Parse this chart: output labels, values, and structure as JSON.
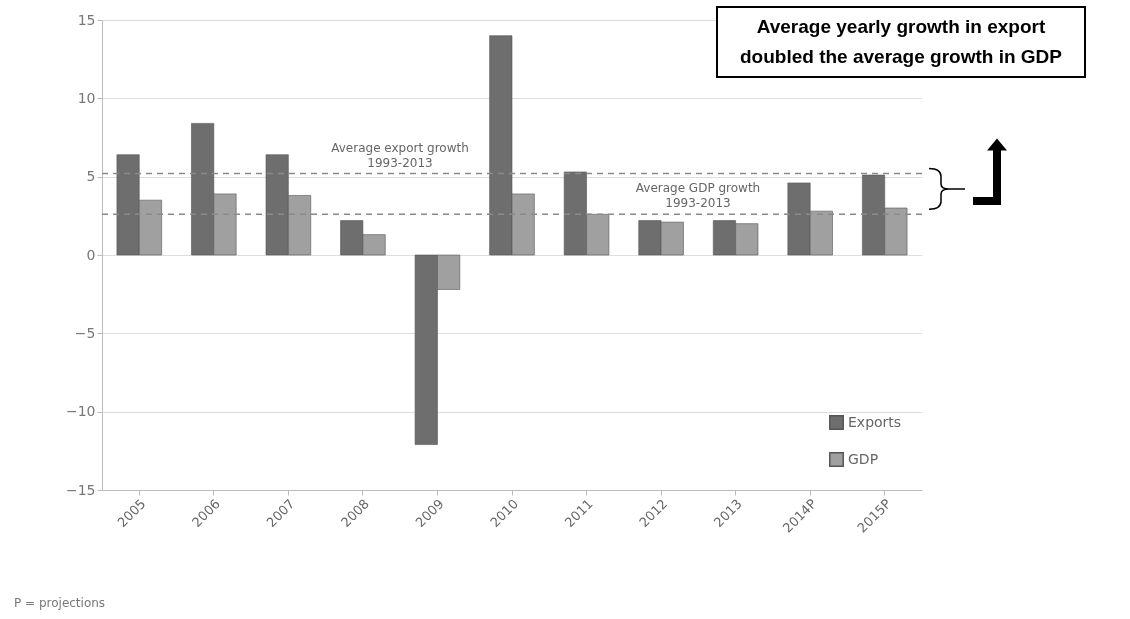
{
  "chart_data": {
    "type": "bar",
    "categories": [
      "2005",
      "2006",
      "2007",
      "2008",
      "2009",
      "2010",
      "2011",
      "2012",
      "2013",
      "2014P",
      "2015P"
    ],
    "series": [
      {
        "name": "Exports",
        "color": "#6e6e6e",
        "values": [
          6.4,
          8.4,
          6.4,
          2.2,
          -12.1,
          14,
          5.3,
          2.2,
          2.2,
          4.6,
          5.1
        ]
      },
      {
        "name": "GDP",
        "color": "#a0a0a0",
        "values": [
          3.5,
          3.9,
          3.8,
          1.3,
          -2.2,
          3.9,
          2.6,
          2.1,
          2.0,
          2.8,
          3.0
        ]
      }
    ],
    "ylim": [
      -15,
      15
    ],
    "yticks": [
      -15,
      -10,
      -5,
      0,
      5,
      10,
      15
    ],
    "grid": "y",
    "legend": "bottom right",
    "ref_lines": [
      {
        "axis": "y",
        "value": 5.2,
        "label": "Average export growth 1993-2013",
        "color": "#8a8a8a",
        "line_style": "dashed"
      },
      {
        "axis": "y",
        "value": 2.6,
        "label": "Average GDP growth 1993-2013",
        "color": "#8a8a8a",
        "line_style": "dashed"
      }
    ],
    "annotations": [
      "Average yearly growth in export doubled the average growth in GDP",
      "P = projections"
    ]
  }
}
